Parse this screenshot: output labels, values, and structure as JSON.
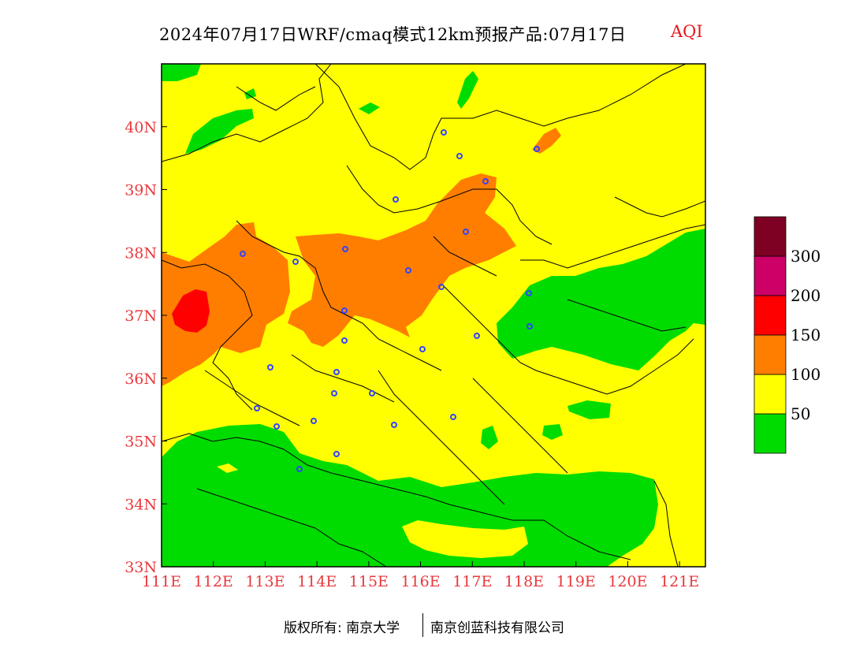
{
  "header": {
    "title": "2024年07月17日WRF/cmaq模式12km预报产品:07月17日",
    "aqi_label": "AQI"
  },
  "map": {
    "lon_range": [
      111,
      121.5
    ],
    "lat_range": [
      33,
      41
    ],
    "lon_ticks": [
      "111E",
      "112E",
      "113E",
      "114E",
      "115E",
      "116E",
      "117E",
      "118E",
      "119E",
      "120E",
      "121E"
    ],
    "lat_ticks": [
      "33N",
      "34N",
      "35N",
      "36N",
      "37N",
      "38N",
      "39N",
      "40N"
    ],
    "tick_color": "#e8383d"
  },
  "legend": {
    "colors": [
      "#00dc00",
      "#ffff00",
      "#ff7e00",
      "#ff0000",
      "#cc0066",
      "#7e0023"
    ],
    "labels": [
      "50",
      "100",
      "150",
      "200",
      "300"
    ]
  },
  "footer": {
    "left": "版权所有: 南京大学",
    "right": "南京创蓝科技有限公司"
  }
}
